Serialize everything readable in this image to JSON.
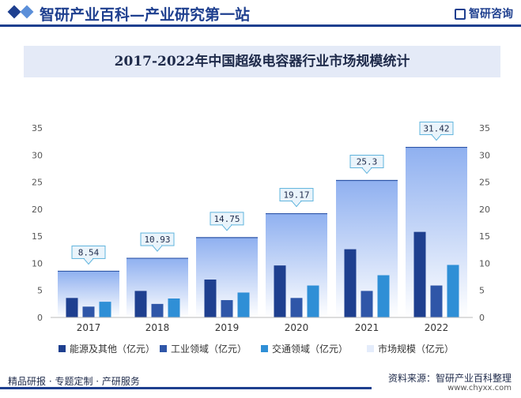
{
  "header": {
    "site_title": "智研产业百科—产业研究第一站",
    "brand": "智研咨询"
  },
  "colors": {
    "primary": "#1e3f8f",
    "series_energy": "#1e3f8f",
    "series_industry": "#2f56a8",
    "series_traffic": "#2f8fd6",
    "series_market_top": "#8fb0f0",
    "series_market_bottom": "#ffffff"
  },
  "chart_data": {
    "type": "bar",
    "title": "2017-2022年中国超级电容器行业市场规模统计",
    "categories": [
      "2017",
      "2018",
      "2019",
      "2020",
      "2021",
      "2022"
    ],
    "series": [
      {
        "name": "能源及其他（亿元）",
        "values": [
          3.6,
          4.9,
          7.0,
          9.6,
          12.6,
          15.8
        ],
        "axis": "left"
      },
      {
        "name": "工业领域（亿元）",
        "values": [
          2.0,
          2.5,
          3.2,
          3.6,
          4.9,
          5.9
        ],
        "axis": "left"
      },
      {
        "name": "交通领域（亿元）",
        "values": [
          2.9,
          3.5,
          4.6,
          5.9,
          7.8,
          9.7
        ],
        "axis": "left"
      },
      {
        "name": "市场规模（亿元）",
        "values": [
          8.54,
          10.93,
          14.75,
          19.17,
          25.3,
          31.42
        ],
        "axis": "right",
        "labels": [
          "8.54",
          "10.93",
          "14.75",
          "19.17",
          "25.3",
          "31.42"
        ]
      }
    ],
    "left_axis": {
      "ylim": [
        0,
        35
      ],
      "ticks": [
        "0",
        "5",
        "10",
        "15",
        "20",
        "25",
        "30",
        "35"
      ]
    },
    "right_axis": {
      "ylim": [
        0,
        35
      ],
      "ticks": [
        "0",
        "5",
        "10",
        "15",
        "20",
        "25",
        "30",
        "35"
      ]
    },
    "grid": false,
    "legend_position": "bottom"
  },
  "footer": {
    "left_text": "精品研报 · 专题定制 · 产研服务",
    "source": "资料来源：智研产业百科整理",
    "url": "www.chyxx.com"
  }
}
